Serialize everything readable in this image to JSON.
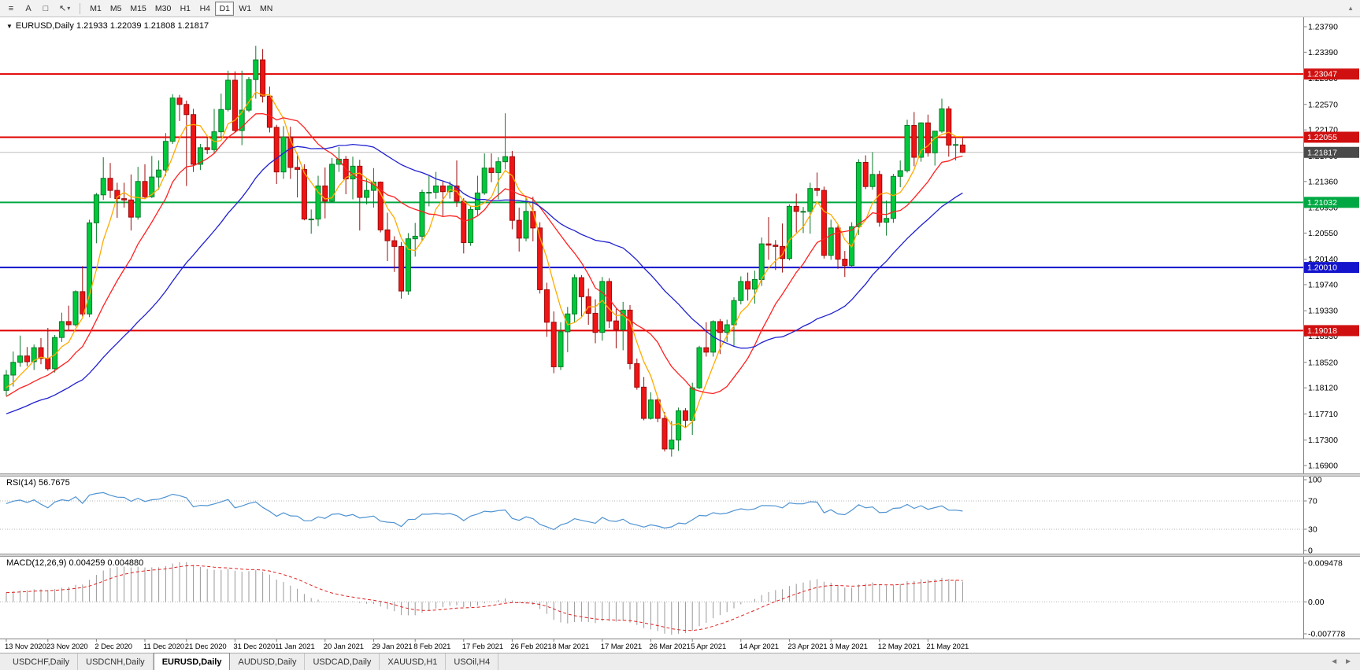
{
  "toolbar": {
    "menu_glyph": "≡",
    "annotate_label": "A",
    "shape_glyph": "□",
    "cursor_glyph": "↖",
    "caret_glyph": "▾",
    "overflow_glyph": "▲",
    "timeframes": [
      "M1",
      "M5",
      "M15",
      "M30",
      "H1",
      "H4",
      "D1",
      "W1",
      "MN"
    ],
    "selected_timeframe": "D1"
  },
  "main_chart": {
    "collapse_glyph": "▼",
    "title": "EURUSD,Daily 1.21933 1.22039 1.21808 1.21817"
  },
  "panels": {
    "rsi_title": "RSI(14) 56.7675",
    "macd_title": "MACD(12,26,9) 0.004259 0.004880"
  },
  "price_axis": {
    "grid_labels": [
      1.2379,
      1.2339,
      1.2298,
      1.2257,
      1.2217,
      1.2176,
      1.2136,
      1.2095,
      1.2055,
      1.2014,
      1.1974,
      1.1933,
      1.1893,
      1.1852,
      1.1812,
      1.1771,
      1.173,
      1.169
    ]
  },
  "tabbar": {
    "scroll_left_glyph": "◄",
    "scroll_right_glyph": "►"
  },
  "tabs": {
    "items": [
      {
        "label": "USDCHF,Daily",
        "active": false
      },
      {
        "label": "USDCNH,Daily",
        "active": false
      },
      {
        "label": "EURUSD,Daily",
        "active": true
      },
      {
        "label": "AUDUSD,Daily",
        "active": false
      },
      {
        "label": "USDCAD,Daily",
        "active": false
      },
      {
        "label": "XAUUSD,H1",
        "active": false
      },
      {
        "label": "USOil,H4",
        "active": false
      }
    ]
  },
  "chart_data": {
    "type": "candlestick",
    "symbol": "EURUSD",
    "timeframe": "Daily",
    "current_price": 1.21817,
    "current_ohlc": {
      "open": 1.21933,
      "high": 1.22039,
      "low": 1.21808,
      "close": 1.21817
    },
    "scale": {
      "top": 1.23938,
      "bottom": 1.16776
    },
    "colors": {
      "up": "#00c93c",
      "up_border": "#0a7a2a",
      "down": "#f01414",
      "down_border": "#9c0b0b",
      "bid_line": "#bdbdbd"
    },
    "levels": [
      {
        "label": "1.23047",
        "price": 1.23047,
        "line_color": "#e00000",
        "badge_color": "#d01010",
        "current": false
      },
      {
        "label": "1.22055",
        "price": 1.22055,
        "line_color": "#e00000",
        "badge_color": "#d01010",
        "current": false
      },
      {
        "label": "1.21817",
        "price": 1.21817,
        "line_color": "#bdbdbd",
        "badge_color": "#4a4a4a",
        "current": true
      },
      {
        "label": "1.21032",
        "price": 1.21032,
        "line_color": "#00a843",
        "badge_color": "#00a843",
        "current": false
      },
      {
        "label": "1.20010",
        "price": 1.2001,
        "line_color": "#1414cc",
        "badge_color": "#1414cc",
        "current": false
      },
      {
        "label": "1.19018",
        "price": 1.19018,
        "line_color": "#e00000",
        "badge_color": "#d01010",
        "current": false
      }
    ],
    "moving_averages": [
      {
        "period": 5,
        "color": "#ffaa00"
      },
      {
        "period": 13,
        "color": "#ff2020"
      },
      {
        "period": 30,
        "color": "#2020d0"
      }
    ],
    "rsi": {
      "period": 14,
      "value": "56.7675",
      "color": "#4f93d2",
      "levels": [
        100,
        70,
        30,
        0
      ]
    },
    "macd": {
      "fast": 12,
      "slow": 26,
      "signal": 9,
      "macd_value": "0.004259",
      "signal_value": "0.004880",
      "axis_labels": [
        "0.009478",
        "0.00",
        "-0.007778"
      ],
      "scale_max": 0.009478,
      "scale_min": -0.007778,
      "histogram_color": "#989898",
      "signal_color": "#e02020"
    },
    "x_labels": [
      {
        "i": 0,
        "t": "13 Nov 2020"
      },
      {
        "i": 6,
        "t": "23 Nov 2020"
      },
      {
        "i": 13,
        "t": "2 Dec 2020"
      },
      {
        "i": 20,
        "t": "11 Dec 2020"
      },
      {
        "i": 26,
        "t": "21 Dec 2020"
      },
      {
        "i": 33,
        "t": "31 Dec 2020"
      },
      {
        "i": 39,
        "t": "11 Jan 2021"
      },
      {
        "i": 46,
        "t": "20 Jan 2021"
      },
      {
        "i": 53,
        "t": "29 Jan 2021"
      },
      {
        "i": 59,
        "t": "8 Feb 2021"
      },
      {
        "i": 66,
        "t": "17 Feb 2021"
      },
      {
        "i": 73,
        "t": "26 Feb 2021"
      },
      {
        "i": 79,
        "t": "8 Mar 2021"
      },
      {
        "i": 86,
        "t": "17 Mar 2021"
      },
      {
        "i": 93,
        "t": "26 Mar 2021"
      },
      {
        "i": 99,
        "t": "5 Apr 2021"
      },
      {
        "i": 106,
        "t": "14 Apr 2021"
      },
      {
        "i": 113,
        "t": "23 Apr 2021"
      },
      {
        "i": 119,
        "t": "3 May 2021"
      },
      {
        "i": 126,
        "t": "12 May 2021"
      },
      {
        "i": 133,
        "t": "21 May 2021"
      }
    ],
    "candles": [
      [
        1.1808,
        1.184,
        1.1799,
        1.1832
      ],
      [
        1.1832,
        1.1869,
        1.1814,
        1.1852
      ],
      [
        1.1852,
        1.1894,
        1.1845,
        1.1862
      ],
      [
        1.1862,
        1.1876,
        1.1846,
        1.1853
      ],
      [
        1.1853,
        1.188,
        1.184,
        1.1875
      ],
      [
        1.1875,
        1.189,
        1.1849,
        1.1858
      ],
      [
        1.1858,
        1.1906,
        1.1839,
        1.1842
      ],
      [
        1.1842,
        1.1895,
        1.1836,
        1.1891
      ],
      [
        1.1891,
        1.193,
        1.1884,
        1.1916
      ],
      [
        1.1916,
        1.1941,
        1.1903,
        1.1911
      ],
      [
        1.1911,
        1.1965,
        1.1908,
        1.1963
      ],
      [
        1.1963,
        1.2003,
        1.1924,
        1.1928
      ],
      [
        1.1928,
        1.2076,
        1.1923,
        1.2071
      ],
      [
        1.2071,
        1.2118,
        1.2039,
        1.2115
      ],
      [
        1.2115,
        1.2174,
        1.2107,
        1.2141
      ],
      [
        1.2141,
        1.2165,
        1.211,
        1.2122
      ],
      [
        1.2122,
        1.2134,
        1.2079,
        1.2109
      ],
      [
        1.2109,
        1.2134,
        1.2095,
        1.2107
      ],
      [
        1.2107,
        1.2147,
        1.2059,
        1.208
      ],
      [
        1.208,
        1.2159,
        1.2076,
        1.2136
      ],
      [
        1.2136,
        1.2163,
        1.211,
        1.2112
      ],
      [
        1.2112,
        1.2176,
        1.211,
        1.2143
      ],
      [
        1.2143,
        1.2169,
        1.2123,
        1.2154
      ],
      [
        1.2154,
        1.2212,
        1.2145,
        1.2199
      ],
      [
        1.2199,
        1.2273,
        1.2195,
        1.2267
      ],
      [
        1.2267,
        1.2272,
        1.2231,
        1.2257
      ],
      [
        1.2257,
        1.2263,
        1.2129,
        1.2241
      ],
      [
        1.2241,
        1.225,
        1.2151,
        1.2163
      ],
      [
        1.2163,
        1.2195,
        1.2154,
        1.2189
      ],
      [
        1.2189,
        1.2208,
        1.2179,
        1.2186
      ],
      [
        1.2186,
        1.225,
        1.2181,
        1.2214
      ],
      [
        1.2214,
        1.2274,
        1.2205,
        1.2249
      ],
      [
        1.2249,
        1.231,
        1.2246,
        1.2295
      ],
      [
        1.2295,
        1.2309,
        1.2214,
        1.2216
      ],
      [
        1.2216,
        1.231,
        1.2193,
        1.2248
      ],
      [
        1.2248,
        1.23,
        1.2245,
        1.2296
      ],
      [
        1.2296,
        1.2349,
        1.2266,
        1.2327
      ],
      [
        1.2327,
        1.2344,
        1.226,
        1.227
      ],
      [
        1.227,
        1.2285,
        1.2213,
        1.2221
      ],
      [
        1.2221,
        1.2225,
        1.2132,
        1.2151
      ],
      [
        1.2151,
        1.2223,
        1.214,
        1.2206
      ],
      [
        1.2206,
        1.2222,
        1.214,
        1.2158
      ],
      [
        1.2158,
        1.218,
        1.2111,
        1.2155
      ],
      [
        1.2155,
        1.2163,
        1.2075,
        1.2077
      ],
      [
        1.2077,
        1.2092,
        1.2054,
        1.2077
      ],
      [
        1.2077,
        1.2145,
        1.2066,
        1.2129
      ],
      [
        1.2129,
        1.2158,
        1.2078,
        1.2105
      ],
      [
        1.2105,
        1.2173,
        1.2103,
        1.2163
      ],
      [
        1.2163,
        1.219,
        1.2151,
        1.2171
      ],
      [
        1.2171,
        1.2176,
        1.2116,
        1.214
      ],
      [
        1.214,
        1.2175,
        1.2108,
        1.216
      ],
      [
        1.216,
        1.217,
        1.2059,
        1.2111
      ],
      [
        1.2111,
        1.2142,
        1.21,
        1.2122
      ],
      [
        1.2122,
        1.2157,
        1.2095,
        1.2135
      ],
      [
        1.2135,
        1.2136,
        1.2056,
        1.206
      ],
      [
        1.206,
        1.2087,
        1.2011,
        1.2043
      ],
      [
        1.2043,
        1.205,
        1.1994,
        1.2034
      ],
      [
        1.2034,
        1.2041,
        1.1952,
        1.1964
      ],
      [
        1.1964,
        1.2055,
        1.1958,
        1.2046
      ],
      [
        1.2046,
        1.2071,
        1.2018,
        1.205
      ],
      [
        1.205,
        1.2123,
        1.2042,
        1.2119
      ],
      [
        1.2119,
        1.2145,
        1.2097,
        1.2119
      ],
      [
        1.2119,
        1.2151,
        1.2109,
        1.2129
      ],
      [
        1.2129,
        1.2136,
        1.2082,
        1.212
      ],
      [
        1.212,
        1.2136,
        1.2109,
        1.2129
      ],
      [
        1.2129,
        1.2169,
        1.2096,
        1.2105
      ],
      [
        1.2105,
        1.211,
        1.2023,
        1.204
      ],
      [
        1.204,
        1.2098,
        1.2035,
        1.2092
      ],
      [
        1.2092,
        1.2145,
        1.2083,
        1.2118
      ],
      [
        1.2118,
        1.218,
        1.2115,
        1.2157
      ],
      [
        1.2157,
        1.218,
        1.2135,
        1.215
      ],
      [
        1.215,
        1.2174,
        1.2108,
        1.2167
      ],
      [
        1.2167,
        1.2243,
        1.2155,
        1.2175
      ],
      [
        1.2175,
        1.2184,
        1.2061,
        1.2075
      ],
      [
        1.2075,
        1.2095,
        1.2026,
        1.2047
      ],
      [
        1.2047,
        1.2113,
        1.2042,
        1.2089
      ],
      [
        1.2089,
        1.2112,
        1.2042,
        1.2063
      ],
      [
        1.2063,
        1.2072,
        1.196,
        1.1966
      ],
      [
        1.1966,
        1.1977,
        1.1892,
        1.1915
      ],
      [
        1.1915,
        1.1932,
        1.1835,
        1.1845
      ],
      [
        1.1845,
        1.1915,
        1.184,
        1.19
      ],
      [
        1.19,
        1.1939,
        1.1868,
        1.1928
      ],
      [
        1.1928,
        1.199,
        1.1915,
        1.1985
      ],
      [
        1.1985,
        1.1989,
        1.1924,
        1.1955
      ],
      [
        1.1955,
        1.1968,
        1.1911,
        1.1929
      ],
      [
        1.1929,
        1.1951,
        1.1882,
        1.1899
      ],
      [
        1.1899,
        1.1986,
        1.1886,
        1.1979
      ],
      [
        1.1979,
        1.1984,
        1.1906,
        1.1917
      ],
      [
        1.1917,
        1.1936,
        1.1874,
        1.1903
      ],
      [
        1.1903,
        1.1947,
        1.1871,
        1.1934
      ],
      [
        1.1934,
        1.1942,
        1.1841,
        1.185
      ],
      [
        1.185,
        1.1858,
        1.1809,
        1.1813
      ],
      [
        1.1813,
        1.1829,
        1.1761,
        1.1764
      ],
      [
        1.1764,
        1.1805,
        1.1762,
        1.1793
      ],
      [
        1.1793,
        1.1797,
        1.1758,
        1.1764
      ],
      [
        1.1764,
        1.1774,
        1.1712,
        1.1716
      ],
      [
        1.1716,
        1.176,
        1.1704,
        1.173
      ],
      [
        1.173,
        1.1781,
        1.1713,
        1.1776
      ],
      [
        1.1776,
        1.178,
        1.1749,
        1.1761
      ],
      [
        1.1761,
        1.182,
        1.1738,
        1.1812
      ],
      [
        1.1812,
        1.1878,
        1.181,
        1.1875
      ],
      [
        1.1875,
        1.1915,
        1.1861,
        1.1868
      ],
      [
        1.1868,
        1.1918,
        1.1861,
        1.1916
      ],
      [
        1.1916,
        1.192,
        1.1865,
        1.1899
      ],
      [
        1.1899,
        1.1919,
        1.1884,
        1.1911
      ],
      [
        1.1911,
        1.1954,
        1.1878,
        1.1949
      ],
      [
        1.1949,
        1.1987,
        1.1943,
        1.1979
      ],
      [
        1.1979,
        1.1993,
        1.1949,
        1.1967
      ],
      [
        1.1967,
        1.1996,
        1.1944,
        1.1982
      ],
      [
        1.1982,
        1.2048,
        1.1972,
        1.2038
      ],
      [
        1.2038,
        1.208,
        1.2013,
        1.2036
      ],
      [
        1.2036,
        1.2044,
        1.1997,
        1.2034
      ],
      [
        1.2034,
        1.207,
        1.1993,
        1.2015
      ],
      [
        1.2015,
        1.21,
        1.2012,
        1.2097
      ],
      [
        1.2097,
        1.2117,
        1.2056,
        1.2089
      ],
      [
        1.2089,
        1.2096,
        1.2055,
        1.2089
      ],
      [
        1.2089,
        1.2134,
        1.2054,
        1.2125
      ],
      [
        1.2125,
        1.215,
        1.2113,
        1.2122
      ],
      [
        1.2122,
        1.2128,
        1.2015,
        1.202
      ],
      [
        1.202,
        1.2076,
        1.2013,
        1.2063
      ],
      [
        1.2063,
        1.2067,
        1.1999,
        1.2014
      ],
      [
        1.2014,
        1.2027,
        1.1986,
        1.2004
      ],
      [
        1.2004,
        1.2072,
        1.2,
        1.2065
      ],
      [
        1.2065,
        1.2171,
        1.2052,
        1.2166
      ],
      [
        1.2166,
        1.2177,
        1.2124,
        1.2128
      ],
      [
        1.2128,
        1.2182,
        1.2123,
        1.2147
      ],
      [
        1.2147,
        1.2153,
        1.2065,
        1.2072
      ],
      [
        1.2072,
        1.2106,
        1.2051,
        1.2078
      ],
      [
        1.2078,
        1.2148,
        1.2071,
        1.2144
      ],
      [
        1.2144,
        1.2169,
        1.2127,
        1.2153
      ],
      [
        1.2153,
        1.2233,
        1.215,
        1.2224
      ],
      [
        1.2224,
        1.2245,
        1.216,
        1.2174
      ],
      [
        1.2174,
        1.2229,
        1.2167,
        1.2228
      ],
      [
        1.2228,
        1.2241,
        1.2175,
        1.2181
      ],
      [
        1.2181,
        1.2215,
        1.2161,
        1.2215
      ],
      [
        1.2215,
        1.2266,
        1.2212,
        1.225
      ],
      [
        1.225,
        1.2254,
        1.2175,
        1.2193
      ],
      [
        1.2193,
        1.2204,
        1.2169,
        1.2194
      ],
      [
        1.21933,
        1.22039,
        1.21808,
        1.21817
      ]
    ]
  }
}
